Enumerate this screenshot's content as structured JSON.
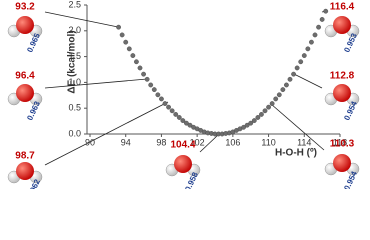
{
  "chart_data": {
    "type": "scatter",
    "y_label": "ΔE (kcal/mol)",
    "x_label": "H-O-H (º)",
    "xlim": [
      90,
      118
    ],
    "xticks": [
      90,
      94,
      98,
      102,
      106,
      110,
      114,
      118
    ],
    "ylim": [
      0,
      2.5
    ],
    "yticks": [
      {
        "value": 0,
        "label": "0.0"
      },
      {
        "value": 0.5,
        "label": "0.5"
      },
      {
        "value": 1,
        "label": "1.0"
      },
      {
        "value": 1.5,
        "label": "1.5"
      },
      {
        "value": 2,
        "label": "2.0"
      },
      {
        "value": 2.5,
        "label": "2.5"
      }
    ],
    "color": "#6d6d6d",
    "x": [
      93.2,
      93.6,
      94.0,
      94.4,
      94.8,
      95.2,
      95.6,
      96.0,
      96.4,
      96.8,
      97.2,
      97.6,
      98.0,
      98.4,
      98.8,
      99.2,
      99.6,
      100.0,
      100.4,
      100.8,
      101.2,
      101.6,
      102.0,
      102.4,
      102.8,
      103.2,
      103.6,
      104.0,
      104.4,
      104.8,
      105.2,
      105.6,
      106.0,
      106.4,
      106.8,
      107.2,
      107.6,
      108.0,
      108.4,
      108.8,
      109.2,
      109.6,
      110.0,
      110.4,
      110.8,
      111.2,
      111.6,
      112.0,
      112.4,
      112.8,
      113.2,
      113.6,
      114.0,
      114.4,
      114.8,
      115.2,
      115.6,
      116.0,
      116.4
    ],
    "values": [
      2.07,
      1.92,
      1.78,
      1.65,
      1.52,
      1.4,
      1.28,
      1.16,
      1.06,
      0.95,
      0.86,
      0.76,
      0.68,
      0.59,
      0.52,
      0.45,
      0.38,
      0.32,
      0.26,
      0.21,
      0.17,
      0.13,
      0.1,
      0.07,
      0.04,
      0.02,
      0.01,
      0,
      0,
      0,
      0.01,
      0.02,
      0.04,
      0.07,
      0.1,
      0.13,
      0.17,
      0.21,
      0.26,
      0.32,
      0.38,
      0.45,
      0.52,
      0.59,
      0.68,
      0.76,
      0.86,
      0.95,
      1.06,
      1.16,
      1.28,
      1.4,
      1.52,
      1.65,
      1.78,
      1.92,
      2.07,
      2.22,
      2.38
    ],
    "annotations": [
      {
        "angle": "93.2",
        "bond": "0.965"
      },
      {
        "angle": "96.4",
        "bond": "0.963"
      },
      {
        "angle": "98.7",
        "bond": "0.962"
      },
      {
        "angle": "104.4",
        "bond": "0.958"
      },
      {
        "angle": "110.3",
        "bond": "0.954"
      },
      {
        "angle": "112.8",
        "bond": "0.954"
      },
      {
        "angle": "116.4",
        "bond": "0.953"
      }
    ]
  }
}
